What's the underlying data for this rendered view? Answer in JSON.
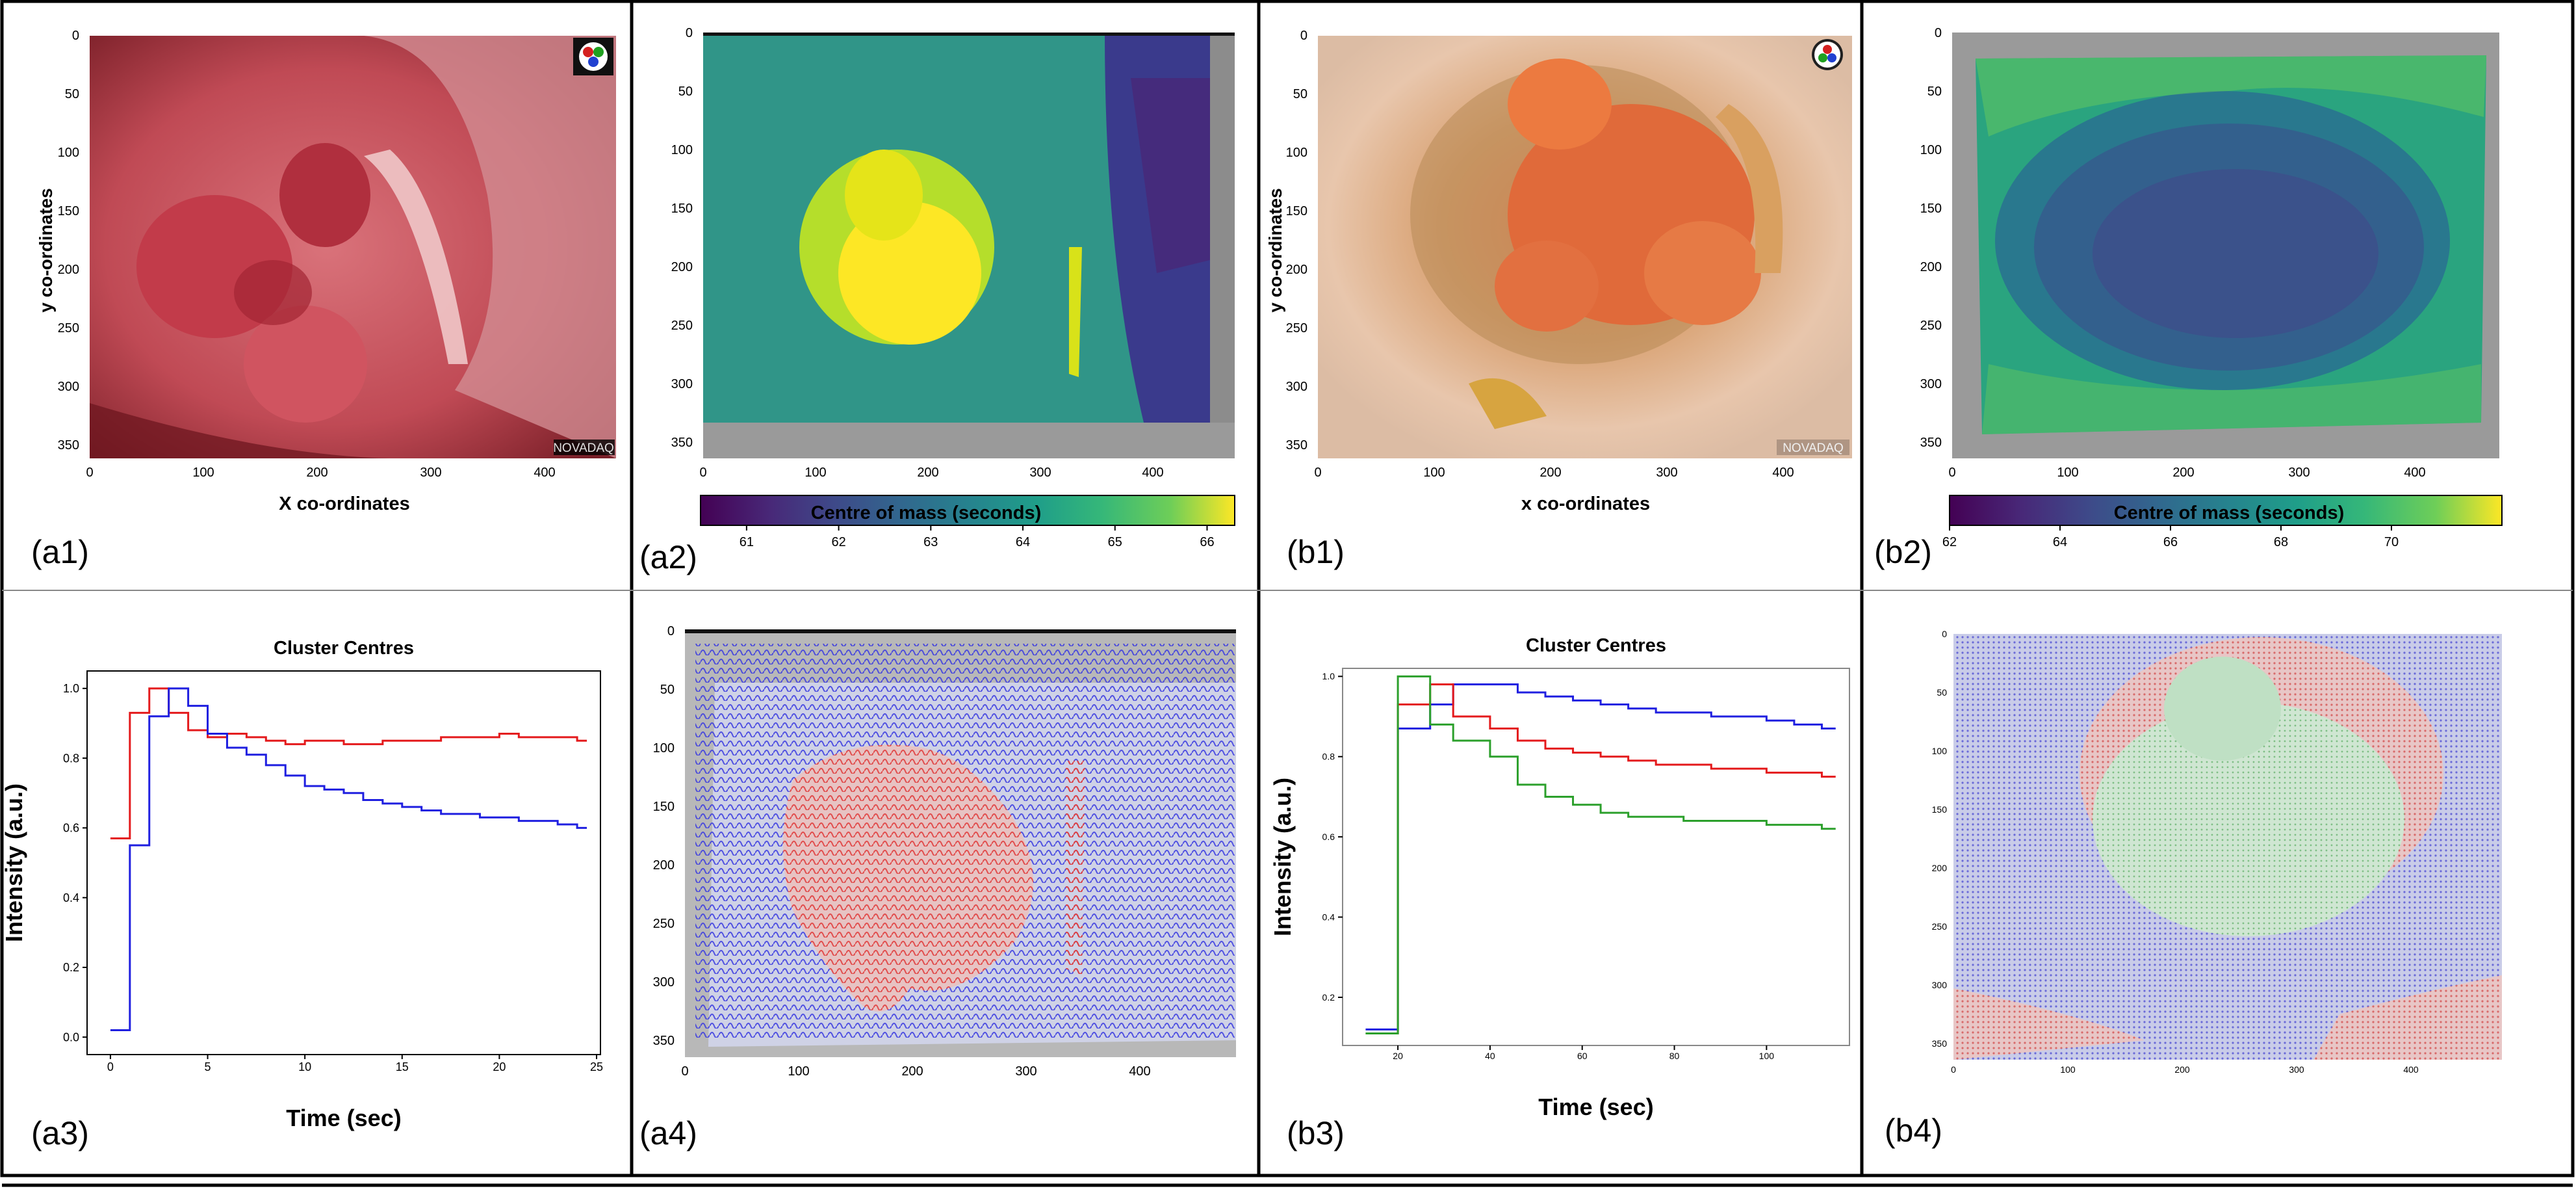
{
  "panel_labels": [
    "(a1)",
    "(a2)",
    "(b1)",
    "(b2)",
    "(a3)",
    "(a4)",
    "(b3)",
    "(b4)"
  ],
  "images": {
    "a1": {
      "ylabel": "y co-ordinates",
      "xlabel": "X co-ordinates",
      "watermark": "NOVADAQ",
      "x_ticks": [
        0,
        100,
        200,
        300,
        400
      ],
      "y_ticks": [
        0,
        50,
        100,
        150,
        200,
        250,
        300,
        350
      ]
    },
    "a2": {
      "x_ticks": [
        0,
        100,
        200,
        300,
        400
      ],
      "y_ticks": [
        0,
        50,
        100,
        150,
        200,
        250,
        300,
        350
      ],
      "colorbar_label": "Centre of mass (seconds)",
      "colorbar_ticks": [
        61,
        62,
        63,
        64,
        65,
        66
      ],
      "colorbar_range": [
        60.5,
        66.3
      ]
    },
    "b1": {
      "ylabel": "y co-ordinates",
      "xlabel": "x co-ordinates",
      "watermark": "NOVADAQ",
      "x_ticks": [
        0,
        100,
        200,
        300,
        400
      ],
      "y_ticks": [
        0,
        50,
        100,
        150,
        200,
        250,
        300,
        350
      ]
    },
    "b2": {
      "x_ticks": [
        0,
        100,
        200,
        300,
        400
      ],
      "y_ticks": [
        0,
        50,
        100,
        150,
        200,
        250,
        300,
        350
      ],
      "colorbar_label": "Centre of mass (seconds)",
      "colorbar_ticks": [
        62,
        64,
        66,
        68,
        70
      ],
      "colorbar_range": [
        62,
        72
      ]
    },
    "a4": {
      "x_ticks": [
        0,
        100,
        200,
        300,
        400
      ],
      "y_ticks": [
        0,
        50,
        100,
        150,
        200,
        250,
        300,
        350
      ]
    },
    "b4": {
      "x_ticks": [
        0,
        100,
        200,
        300,
        400
      ],
      "y_ticks": [
        0,
        50,
        100,
        150,
        200,
        250,
        300,
        350
      ]
    }
  },
  "colors": {
    "red": "#e41a1c",
    "blue": "#1f1fe0",
    "green": "#2ca02c"
  },
  "chart_data": [
    {
      "id": "a3",
      "type": "line",
      "title": "Cluster Centres",
      "xlabel": "Time (sec)",
      "ylabel": "Intensity (a.u.)",
      "xlim": [
        -1.2,
        25.2
      ],
      "ylim": [
        -0.05,
        1.05
      ],
      "x_ticks": [
        0,
        5,
        10,
        15,
        20,
        25
      ],
      "y_ticks": [
        0.0,
        0.2,
        0.4,
        0.6,
        0.8,
        1.0
      ],
      "y_tick_labels": [
        "0.0",
        "0.2",
        "0.4",
        "0.6",
        "0.8",
        "1.0"
      ],
      "series": [
        {
          "color": "red",
          "x": [
            0,
            1,
            2,
            3,
            4,
            5,
            6,
            7,
            8,
            9,
            10,
            11,
            12,
            13,
            14,
            15,
            16,
            17,
            18,
            19,
            20,
            21,
            22,
            23,
            24
          ],
          "y": [
            0.57,
            0.93,
            1.0,
            0.93,
            0.88,
            0.86,
            0.87,
            0.86,
            0.85,
            0.84,
            0.85,
            0.85,
            0.84,
            0.84,
            0.85,
            0.85,
            0.85,
            0.86,
            0.86,
            0.86,
            0.87,
            0.86,
            0.86,
            0.86,
            0.85
          ]
        },
        {
          "color": "blue",
          "x": [
            0,
            1,
            2,
            3,
            4,
            5,
            6,
            7,
            8,
            9,
            10,
            11,
            12,
            13,
            14,
            15,
            16,
            17,
            18,
            19,
            20,
            21,
            22,
            23,
            24
          ],
          "y": [
            0.02,
            0.55,
            0.92,
            1.0,
            0.95,
            0.87,
            0.83,
            0.81,
            0.78,
            0.75,
            0.72,
            0.71,
            0.7,
            0.68,
            0.67,
            0.66,
            0.65,
            0.64,
            0.64,
            0.63,
            0.63,
            0.62,
            0.62,
            0.61,
            0.6
          ]
        }
      ]
    },
    {
      "id": "b3",
      "type": "line",
      "title": "Cluster Centres",
      "xlabel": "Time (sec)",
      "ylabel": "Intensity (a.u.)",
      "xlim": [
        8,
        118
      ],
      "ylim": [
        0.08,
        1.02
      ],
      "x_ticks": [
        20,
        40,
        60,
        80,
        100
      ],
      "y_ticks": [
        0.2,
        0.4,
        0.6,
        0.8,
        1.0
      ],
      "y_tick_labels": [
        "0.2",
        "0.4",
        "0.6",
        "0.8",
        "1.0"
      ],
      "series": [
        {
          "color": "blue",
          "x": [
            13,
            20,
            27,
            32,
            40,
            46,
            52,
            58,
            64,
            70,
            76,
            82,
            88,
            94,
            100,
            106,
            112
          ],
          "y": [
            0.12,
            0.87,
            0.93,
            0.98,
            0.98,
            0.96,
            0.95,
            0.94,
            0.93,
            0.92,
            0.91,
            0.91,
            0.9,
            0.9,
            0.89,
            0.88,
            0.87
          ]
        },
        {
          "color": "red",
          "x": [
            13,
            20,
            27,
            32,
            40,
            46,
            52,
            58,
            64,
            70,
            76,
            82,
            88,
            94,
            100,
            106,
            112
          ],
          "y": [
            0.11,
            0.93,
            0.98,
            0.9,
            0.87,
            0.84,
            0.82,
            0.81,
            0.8,
            0.79,
            0.78,
            0.78,
            0.77,
            0.77,
            0.76,
            0.76,
            0.75
          ]
        },
        {
          "color": "green",
          "x": [
            13,
            20,
            27,
            32,
            40,
            46,
            52,
            58,
            64,
            70,
            76,
            82,
            88,
            94,
            100,
            106,
            112
          ],
          "y": [
            0.11,
            1.0,
            0.88,
            0.84,
            0.8,
            0.73,
            0.7,
            0.68,
            0.66,
            0.65,
            0.65,
            0.64,
            0.64,
            0.64,
            0.63,
            0.63,
            0.62
          ]
        }
      ]
    }
  ]
}
